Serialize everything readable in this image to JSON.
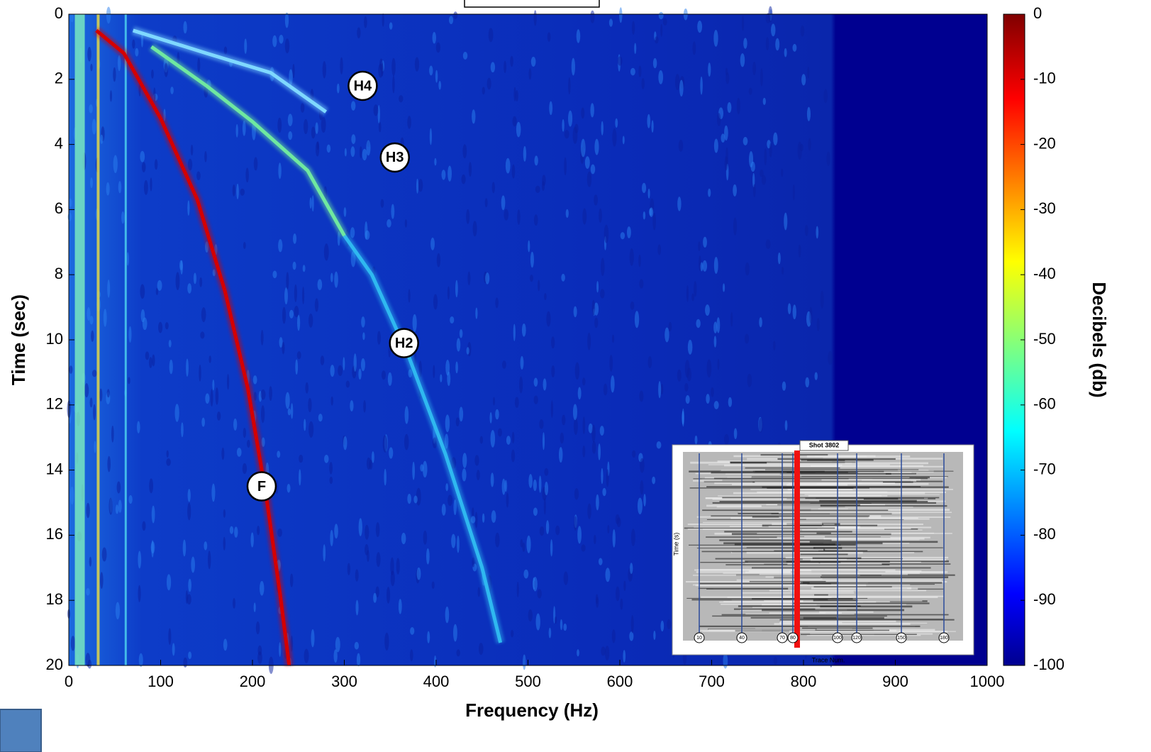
{
  "chart_data": {
    "type": "spectrogram",
    "xlabel": "Frequency (Hz)",
    "ylabel": "Time (sec)",
    "xlim": [
      0,
      1000
    ],
    "ylim": [
      0,
      20
    ],
    "invert_y": true,
    "xticks": [
      0,
      100,
      200,
      300,
      400,
      500,
      600,
      700,
      800,
      900,
      1000
    ],
    "yticks": [
      0,
      2,
      4,
      6,
      8,
      10,
      12,
      14,
      16,
      18,
      20
    ],
    "colorbar": {
      "label": "Decibels (db)",
      "colormap": "jet",
      "clim": [
        -100,
        0
      ],
      "ticks": [
        0,
        -10,
        -20,
        -30,
        -40,
        -50,
        -60,
        -70,
        -80,
        -90,
        -100
      ]
    },
    "series": [
      {
        "name": "F",
        "color": "#d40000",
        "x": [
          30,
          60,
          100,
          140,
          170,
          195,
          215,
          230,
          240
        ],
        "y": [
          0.5,
          1.2,
          3.2,
          5.7,
          8.5,
          11.5,
          14.8,
          17.8,
          20
        ]
      },
      {
        "name": "H2",
        "color": "#2fb8f0",
        "x": [
          300,
          330,
          370,
          410,
          450,
          470
        ],
        "y": [
          6.8,
          8,
          10.5,
          13.5,
          17,
          19.3
        ]
      },
      {
        "name": "H3",
        "color": "#6fe8a0",
        "x": [
          90,
          150,
          200,
          260,
          300
        ],
        "y": [
          1.0,
          2.2,
          3.3,
          4.8,
          6.8
        ]
      },
      {
        "name": "H4",
        "color": "#7fd8ff",
        "x": [
          70,
          150,
          220,
          280
        ],
        "y": [
          0.5,
          1.2,
          1.8,
          3.0
        ]
      }
    ],
    "annotations": [
      {
        "text": "H4",
        "x": 320,
        "y": 2.2
      },
      {
        "text": "H3",
        "x": 355,
        "y": 4.4
      },
      {
        "text": "H2",
        "x": 365,
        "y": 10.1
      },
      {
        "text": "F",
        "x": 210,
        "y": 14.5
      }
    ],
    "inset": {
      "title": "Shot 3802",
      "ylabel": "Time (s)",
      "xlabel": "Trace Num.",
      "markers": [
        "10",
        "40",
        "70",
        "80",
        "100",
        "120",
        "150",
        "180"
      ]
    }
  }
}
